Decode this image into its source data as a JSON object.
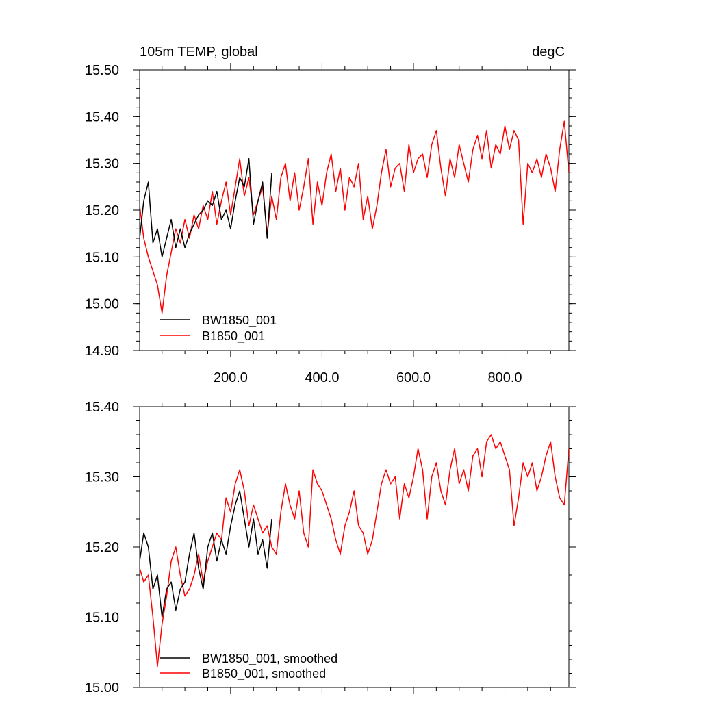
{
  "chart_data": [
    {
      "type": "line",
      "title_left": "105m TEMP, global",
      "title_right": "degC",
      "xlim": [
        1,
        940
      ],
      "ylim": [
        14.9,
        15.5
      ],
      "x_ticks": [
        200,
        400,
        600,
        800
      ],
      "x_tick_labels": [
        "200.0",
        "400.0",
        "600.0",
        "800.0"
      ],
      "y_ticks": [
        14.9,
        15.0,
        15.1,
        15.2,
        15.3,
        15.4,
        15.5
      ],
      "y_tick_labels": [
        "14.90",
        "15.00",
        "15.10",
        "15.20",
        "15.30",
        "15.40",
        "15.50"
      ],
      "legend_position": "bottom-left",
      "series": [
        {
          "name": "BW1850_001",
          "color": "#000000",
          "x": [
            1,
            10,
            20,
            30,
            40,
            50,
            60,
            70,
            80,
            90,
            100,
            110,
            120,
            130,
            140,
            150,
            160,
            170,
            180,
            190,
            200,
            210,
            220,
            230,
            240,
            250,
            260,
            270,
            280,
            290
          ],
          "y": [
            15.14,
            15.22,
            15.26,
            15.13,
            15.16,
            15.1,
            15.14,
            15.18,
            15.12,
            15.16,
            15.12,
            15.15,
            15.17,
            15.19,
            15.2,
            15.22,
            15.21,
            15.24,
            15.18,
            15.2,
            15.16,
            15.22,
            15.27,
            15.25,
            15.31,
            15.17,
            15.22,
            15.26,
            15.14,
            15.28
          ]
        },
        {
          "name": "B1850_001",
          "color": "#ff0000",
          "x": [
            1,
            10,
            20,
            30,
            40,
            50,
            60,
            70,
            80,
            90,
            100,
            110,
            120,
            130,
            140,
            150,
            160,
            170,
            180,
            190,
            200,
            210,
            220,
            230,
            240,
            250,
            260,
            270,
            280,
            290,
            300,
            310,
            320,
            330,
            340,
            350,
            360,
            370,
            380,
            390,
            400,
            410,
            420,
            430,
            440,
            450,
            460,
            470,
            480,
            490,
            500,
            510,
            520,
            530,
            540,
            550,
            560,
            570,
            580,
            590,
            600,
            610,
            620,
            630,
            640,
            650,
            660,
            670,
            680,
            690,
            700,
            710,
            720,
            730,
            740,
            750,
            760,
            770,
            780,
            790,
            800,
            810,
            820,
            830,
            840,
            850,
            860,
            870,
            880,
            890,
            900,
            910,
            920,
            930,
            940
          ],
          "y": [
            15.21,
            15.14,
            15.1,
            15.07,
            15.04,
            14.98,
            15.06,
            15.11,
            15.16,
            15.13,
            15.18,
            15.14,
            15.19,
            15.16,
            15.21,
            15.18,
            15.24,
            15.17,
            15.22,
            15.26,
            15.19,
            15.25,
            15.31,
            15.23,
            15.27,
            15.19,
            15.22,
            15.25,
            15.15,
            15.23,
            15.18,
            15.27,
            15.3,
            15.22,
            15.28,
            15.2,
            15.25,
            15.31,
            15.17,
            15.26,
            15.21,
            15.28,
            15.32,
            15.24,
            15.29,
            15.2,
            15.27,
            15.25,
            15.3,
            15.18,
            15.23,
            15.16,
            15.21,
            15.28,
            15.33,
            15.25,
            15.29,
            15.3,
            15.24,
            15.34,
            15.28,
            15.31,
            15.32,
            15.27,
            15.34,
            15.37,
            15.29,
            15.23,
            15.31,
            15.27,
            15.34,
            15.3,
            15.26,
            15.33,
            15.36,
            15.31,
            15.37,
            15.29,
            15.34,
            15.32,
            15.38,
            15.33,
            15.37,
            15.35,
            15.17,
            15.3,
            15.28,
            15.31,
            15.27,
            15.32,
            15.29,
            15.24,
            15.33,
            15.39,
            15.28
          ]
        }
      ]
    },
    {
      "type": "line",
      "xlim": [
        1,
        940
      ],
      "ylim": [
        15.0,
        15.4
      ],
      "x_ticks": [
        200,
        400,
        600,
        800
      ],
      "y_ticks": [
        15.0,
        15.1,
        15.2,
        15.3,
        15.4
      ],
      "y_tick_labels": [
        "15.00",
        "15.10",
        "15.20",
        "15.30",
        "15.40"
      ],
      "legend_position": "bottom-left",
      "series": [
        {
          "name": "BW1850_001, smoothed",
          "color": "#000000",
          "x": [
            1,
            10,
            20,
            30,
            40,
            50,
            60,
            70,
            80,
            90,
            100,
            110,
            120,
            130,
            140,
            150,
            160,
            170,
            180,
            190,
            200,
            210,
            220,
            230,
            240,
            250,
            260,
            270,
            280,
            290
          ],
          "y": [
            15.18,
            15.22,
            15.2,
            15.14,
            15.16,
            15.1,
            15.14,
            15.15,
            15.11,
            15.14,
            15.15,
            15.19,
            15.22,
            15.17,
            15.14,
            15.2,
            15.22,
            15.18,
            15.21,
            15.19,
            15.23,
            15.26,
            15.28,
            15.24,
            15.2,
            15.24,
            15.19,
            15.21,
            15.17,
            15.24
          ]
        },
        {
          "name": "B1850_001, smoothed",
          "color": "#ff0000",
          "x": [
            1,
            10,
            20,
            30,
            40,
            50,
            60,
            70,
            80,
            90,
            100,
            110,
            120,
            130,
            140,
            150,
            160,
            170,
            180,
            190,
            200,
            210,
            220,
            230,
            240,
            250,
            260,
            270,
            280,
            290,
            300,
            310,
            320,
            330,
            340,
            350,
            360,
            370,
            380,
            390,
            400,
            410,
            420,
            430,
            440,
            450,
            460,
            470,
            480,
            490,
            500,
            510,
            520,
            530,
            540,
            550,
            560,
            570,
            580,
            590,
            600,
            610,
            620,
            630,
            640,
            650,
            660,
            670,
            680,
            690,
            700,
            710,
            720,
            730,
            740,
            750,
            760,
            770,
            780,
            790,
            800,
            810,
            820,
            830,
            840,
            850,
            860,
            870,
            880,
            890,
            900,
            910,
            920,
            930,
            940
          ],
          "y": [
            15.17,
            15.15,
            15.16,
            15.1,
            15.03,
            15.09,
            15.13,
            15.18,
            15.2,
            15.16,
            15.13,
            15.14,
            15.16,
            15.19,
            15.15,
            15.18,
            15.2,
            15.22,
            15.21,
            15.27,
            15.25,
            15.29,
            15.31,
            15.28,
            15.23,
            15.26,
            15.24,
            15.22,
            15.23,
            15.2,
            15.19,
            15.25,
            15.29,
            15.26,
            15.24,
            15.28,
            15.22,
            15.2,
            15.31,
            15.29,
            15.28,
            15.26,
            15.24,
            15.21,
            15.19,
            15.23,
            15.25,
            15.28,
            15.23,
            15.22,
            15.19,
            15.21,
            15.25,
            15.29,
            15.31,
            15.29,
            15.3,
            15.24,
            15.29,
            15.27,
            15.3,
            15.34,
            15.31,
            15.24,
            15.3,
            15.32,
            15.28,
            15.26,
            15.31,
            15.34,
            15.29,
            15.31,
            15.28,
            15.33,
            15.34,
            15.3,
            15.35,
            15.36,
            15.34,
            15.35,
            15.33,
            15.31,
            15.23,
            15.27,
            15.32,
            15.3,
            15.32,
            15.28,
            15.3,
            15.33,
            15.35,
            15.3,
            15.27,
            15.26,
            15.34
          ]
        }
      ]
    }
  ]
}
